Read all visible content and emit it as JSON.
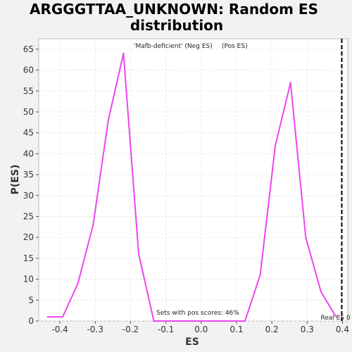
{
  "chart_data": {
    "type": "line",
    "title_line1": "ARGGGTTAA_UNKNOWN: Random ES",
    "title_line2": "distribution",
    "xlabel": "ES",
    "ylabel": "P(ES)",
    "xlim": [
      -0.46,
      0.415
    ],
    "ylim": [
      0,
      67.5
    ],
    "x_ticks": [
      -0.4,
      -0.3,
      -0.2,
      -0.1,
      0.0,
      0.1,
      0.2,
      0.3,
      0.4
    ],
    "x_tick_labels": [
      "-0.4",
      "-0.3",
      "-0.2",
      "-0.1",
      "0.0",
      "0.1",
      "0.2",
      "0.3",
      "0.4"
    ],
    "y_ticks": [
      0,
      5,
      10,
      15,
      20,
      25,
      30,
      35,
      40,
      45,
      50,
      55,
      60,
      65
    ],
    "y_tick_labels": [
      "0",
      "5",
      "10",
      "15",
      "20",
      "25",
      "30",
      "35",
      "40",
      "45",
      "50",
      "55",
      "60",
      "65"
    ],
    "grid": true,
    "legend": {
      "position": "top-center",
      "entries": [
        {
          "text": "'Mafb-deficient' (Neg ES)",
          "color": "#2222cc"
        },
        {
          "text": "(Pos ES)",
          "color": "#dd2222"
        }
      ]
    },
    "series": [
      {
        "color": "#ee44ee",
        "x": [
          -0.435,
          -0.392,
          -0.349,
          -0.306,
          -0.263,
          -0.22,
          -0.177,
          -0.134,
          -0.091,
          -0.048,
          -0.005,
          0.038,
          0.081,
          0.124,
          0.167,
          0.21,
          0.253,
          0.296,
          0.339,
          0.382
        ],
        "y": [
          1,
          1,
          9,
          23,
          48,
          64,
          16,
          0,
          0,
          0,
          0,
          0,
          0,
          0,
          11,
          42,
          57,
          20,
          7,
          1
        ]
      }
    ],
    "real_es": {
      "x": 0.398,
      "label": "Real ES 0"
    },
    "annotation": "Sets with pos scores: 46%"
  }
}
